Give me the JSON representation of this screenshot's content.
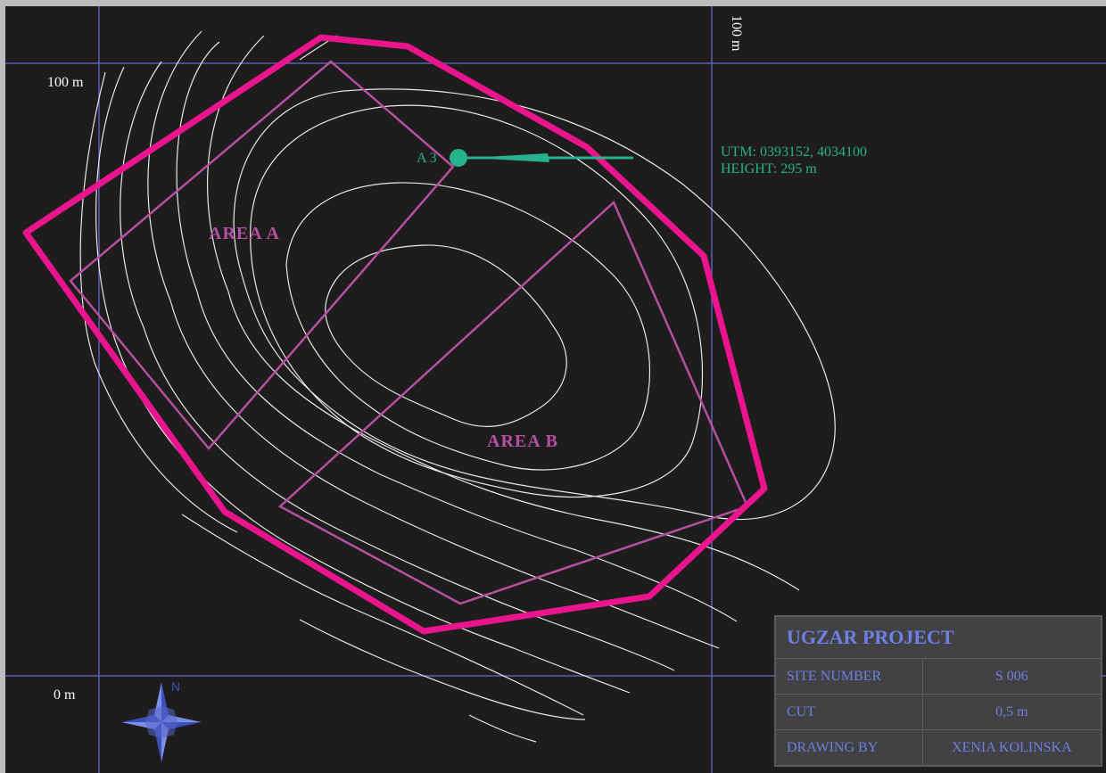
{
  "grid": {
    "left_top_label": "100 m",
    "right_top_label": "100 m",
    "bottom_label": "0 m"
  },
  "areas": {
    "a_label": "AREA A",
    "b_label": "AREA B"
  },
  "point": {
    "label": "A 3",
    "utm": "UTM: 0393152, 4034100",
    "height": "HEIGHT: 295 m"
  },
  "compass": {
    "north_label": "N"
  },
  "title_block": {
    "project": "UGZAR PROJECT",
    "rows": [
      {
        "label": "SITE NUMBER",
        "value": "S 006"
      },
      {
        "label": "CUT",
        "value": "0,5 m"
      },
      {
        "label": "DRAWING BY",
        "value": "XENIA KOLINSKA"
      }
    ]
  },
  "colors": {
    "background": "#1e1c1d",
    "grid": "#5a5fb0",
    "contour": "#e8e8e8",
    "site_boundary": "#e8158c",
    "trench": "#b450a0",
    "point": "#26b28c",
    "title_text": "#6f7fe0"
  }
}
